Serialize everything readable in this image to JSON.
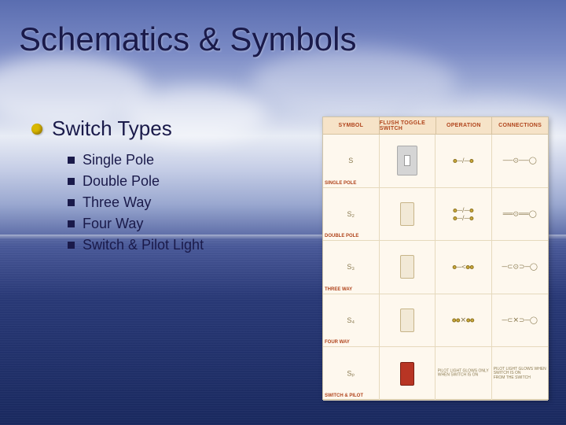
{
  "title": "Schematics & Symbols",
  "heading": "Switch Types",
  "items": [
    "Single Pole",
    "Double Pole",
    "Three Way",
    "Four Way",
    "Switch & Pilot Light"
  ],
  "figure": {
    "headers": [
      "SYMBOL",
      "FLUSH TOGGLE SWITCH",
      "OPERATION",
      "CONNECTIONS"
    ],
    "rows": [
      {
        "label": "SINGLE POLE",
        "symbol": "S",
        "switch_color": "#f2e9d6"
      },
      {
        "label": "DOUBLE POLE",
        "symbol": "S₂",
        "switch_color": "#f2e9d6"
      },
      {
        "label": "THREE WAY",
        "symbol": "S₃",
        "switch_color": "#f2e9d6"
      },
      {
        "label": "FOUR WAY",
        "symbol": "S₄",
        "switch_color": "#f2e9d6"
      },
      {
        "label": "SWITCH & PILOT",
        "symbol": "Sₚ",
        "switch_color": "#b83524"
      }
    ],
    "colors": {
      "background": "#fef8ee",
      "header_bg": "#f6e3c8",
      "grid_line": "#e6d9bd",
      "label_color": "#b0441c",
      "switch_border": "#c7b488"
    }
  },
  "style": {
    "title_fontsize": 42,
    "heading_fontsize": 26,
    "item_fontsize": 18,
    "text_color": "#1a1a4a",
    "bullet_dot_color": "#d9b800",
    "bullet_square_color": "#1a1a4a",
    "bg_gradient": [
      "#5a6db0",
      "#7a8ac5",
      "#a8b4da",
      "#e8ecf5",
      "#c5cde6",
      "#9aa8d0",
      "#4a5a9a",
      "#2a3a78",
      "#1a2a60"
    ]
  }
}
